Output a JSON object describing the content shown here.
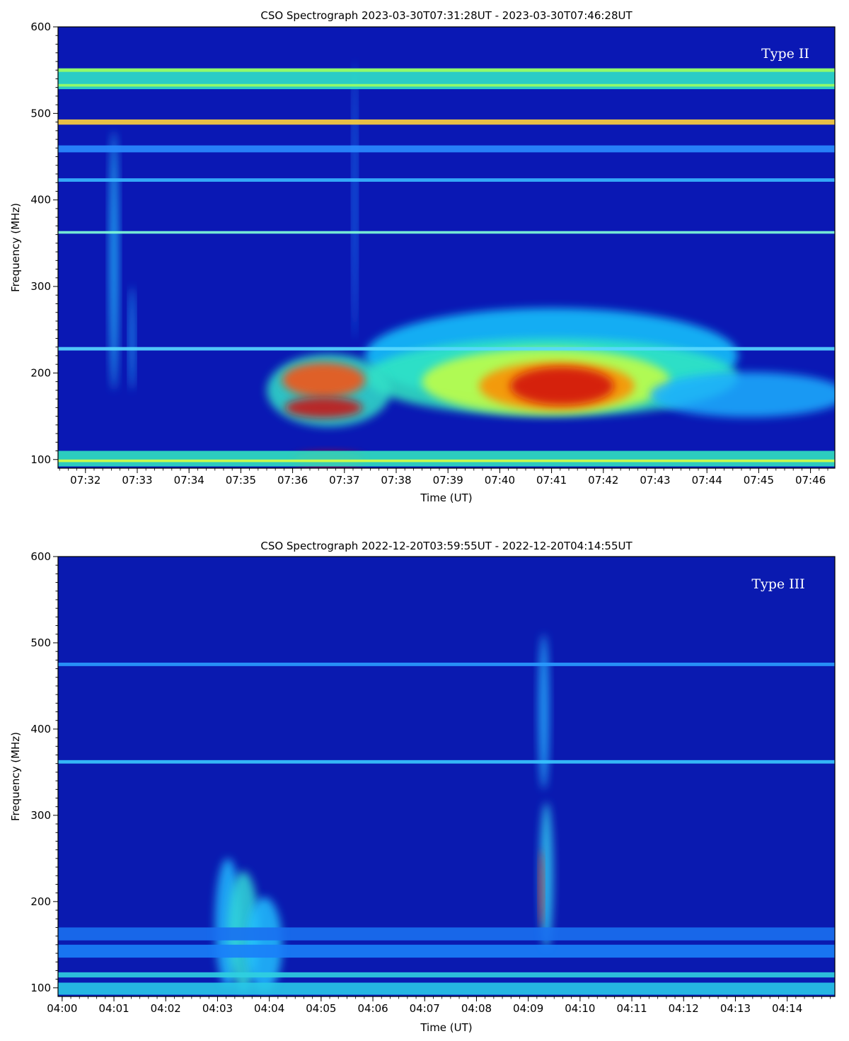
{
  "chart_data": [
    {
      "type": "heatmap",
      "title": "CSO Spectrograph 2023-03-30T07:31:28UT - 2023-03-30T07:46:28UT",
      "xlabel": "Time (UT)",
      "ylabel": "Frequency (MHz)",
      "annotation": "Type II",
      "x_range_min": [
        31.47,
        46.47
      ],
      "x_ticks": [
        {
          "min": 32,
          "label": "07:32"
        },
        {
          "min": 33,
          "label": "07:33"
        },
        {
          "min": 34,
          "label": "07:34"
        },
        {
          "min": 35,
          "label": "07:35"
        },
        {
          "min": 36,
          "label": "07:36"
        },
        {
          "min": 37,
          "label": "07:37"
        },
        {
          "min": 38,
          "label": "07:38"
        },
        {
          "min": 39,
          "label": "07:39"
        },
        {
          "min": 40,
          "label": "07:40"
        },
        {
          "min": 41,
          "label": "07:41"
        },
        {
          "min": 42,
          "label": "07:42"
        },
        {
          "min": 43,
          "label": "07:43"
        },
        {
          "min": 44,
          "label": "07:44"
        },
        {
          "min": 45,
          "label": "07:45"
        },
        {
          "min": 46,
          "label": "07:46"
        }
      ],
      "y_range": [
        90,
        600
      ],
      "y_ticks": [
        {
          "v": 100,
          "label": "100"
        },
        {
          "v": 200,
          "label": "200"
        },
        {
          "v": 300,
          "label": "300"
        },
        {
          "v": 400,
          "label": "400"
        },
        {
          "v": 500,
          "label": "500"
        },
        {
          "v": 600,
          "label": "600"
        }
      ],
      "colormap": "jet",
      "background": "#0a18b4",
      "bands": [
        {
          "f0": 528,
          "f1": 552,
          "color": "#2de0c8"
        },
        {
          "f0": 548,
          "f1": 552,
          "color": "#9bff60"
        },
        {
          "f0": 531,
          "f1": 534,
          "color": "#9bff60"
        },
        {
          "f0": 487,
          "f1": 493,
          "color": "#ffd23a"
        },
        {
          "f0": 455,
          "f1": 463,
          "color": "#2a8cff"
        },
        {
          "f0": 421,
          "f1": 425,
          "color": "#38b8ff"
        },
        {
          "f0": 361,
          "f1": 364,
          "color": "#7fffd8"
        },
        {
          "f0": 226,
          "f1": 230,
          "color": "#58d8ff"
        },
        {
          "f0": 92,
          "f1": 110,
          "color": "#30e0c0"
        },
        {
          "f0": 97,
          "f1": 100,
          "color": "#d8ff40"
        }
      ],
      "blobs": [
        {
          "t": 32.55,
          "f": 330,
          "rt": 0.08,
          "rf": 150,
          "color": "#28c0ff"
        },
        {
          "t": 32.9,
          "f": 240,
          "rt": 0.05,
          "rf": 60,
          "color": "#20b0ff"
        },
        {
          "t": 37.2,
          "f": 400,
          "rt": 0.04,
          "rf": 160,
          "color": "#1a90ff"
        },
        {
          "t": 41.0,
          "f": 220,
          "rt": 3.6,
          "rf": 55,
          "color": "#18c8ff"
        },
        {
          "t": 41.0,
          "f": 195,
          "rt": 3.6,
          "rf": 45,
          "color": "#30e8c0"
        },
        {
          "t": 40.9,
          "f": 190,
          "rt": 2.4,
          "rf": 38,
          "color": "#c8ff40"
        },
        {
          "t": 41.1,
          "f": 185,
          "rt": 1.5,
          "rf": 28,
          "color": "#ff8a00"
        },
        {
          "t": 41.2,
          "f": 185,
          "rt": 1.0,
          "rf": 22,
          "color": "#d01010"
        },
        {
          "t": 44.8,
          "f": 175,
          "rt": 1.9,
          "rf": 26,
          "color": "#1ab0ff"
        },
        {
          "t": 36.7,
          "f": 180,
          "rt": 1.2,
          "rf": 42,
          "color": "#30e0c8"
        },
        {
          "t": 36.6,
          "f": 192,
          "rt": 0.8,
          "rf": 20,
          "color": "#ff5010"
        },
        {
          "t": 36.6,
          "f": 160,
          "rt": 0.75,
          "rf": 12,
          "color": "#d01010"
        },
        {
          "t": 36.7,
          "f": 100,
          "rt": 0.7,
          "rf": 8,
          "color": "#d01010"
        }
      ]
    },
    {
      "type": "heatmap",
      "title": "CSO Spectrograph 2022-12-20T03:59:55UT - 2022-12-20T04:14:55UT",
      "xlabel": "Time (UT)",
      "ylabel": "Frequency (MHz)",
      "annotation": "Type III",
      "x_range_min": [
        -0.08,
        14.92
      ],
      "x_ticks": [
        {
          "min": 0,
          "label": "04:00"
        },
        {
          "min": 1,
          "label": "04:01"
        },
        {
          "min": 2,
          "label": "04:02"
        },
        {
          "min": 3,
          "label": "04:03"
        },
        {
          "min": 4,
          "label": "04:04"
        },
        {
          "min": 5,
          "label": "04:05"
        },
        {
          "min": 6,
          "label": "04:06"
        },
        {
          "min": 7,
          "label": "04:07"
        },
        {
          "min": 8,
          "label": "04:08"
        },
        {
          "min": 9,
          "label": "04:09"
        },
        {
          "min": 10,
          "label": "04:10"
        },
        {
          "min": 11,
          "label": "04:11"
        },
        {
          "min": 12,
          "label": "04:12"
        },
        {
          "min": 13,
          "label": "04:13"
        },
        {
          "min": 14,
          "label": "04:14"
        }
      ],
      "y_range": [
        90,
        600
      ],
      "y_ticks": [
        {
          "v": 100,
          "label": "100"
        },
        {
          "v": 200,
          "label": "200"
        },
        {
          "v": 300,
          "label": "300"
        },
        {
          "v": 400,
          "label": "400"
        },
        {
          "v": 500,
          "label": "500"
        },
        {
          "v": 600,
          "label": "600"
        }
      ],
      "colormap": "jet",
      "background": "#0a1ab0",
      "bands": [
        {
          "f0": 473,
          "f1": 477,
          "color": "#2a9cff"
        },
        {
          "f0": 360,
          "f1": 364,
          "color": "#38c8ff"
        },
        {
          "f0": 155,
          "f1": 170,
          "color": "#1a70f0"
        },
        {
          "f0": 135,
          "f1": 150,
          "color": "#1a80f8"
        },
        {
          "f0": 112,
          "f1": 118,
          "color": "#30d0e0"
        },
        {
          "f0": 92,
          "f1": 106,
          "color": "#28c8e8"
        }
      ],
      "blobs": [
        {
          "t": 3.2,
          "f": 175,
          "rt": 0.25,
          "rf": 75,
          "color": "#20b8ff"
        },
        {
          "t": 3.5,
          "f": 165,
          "rt": 0.3,
          "rf": 70,
          "color": "#30d8d8"
        },
        {
          "t": 3.9,
          "f": 150,
          "rt": 0.35,
          "rf": 55,
          "color": "#20c0ff"
        },
        {
          "t": 9.3,
          "f": 420,
          "rt": 0.1,
          "rf": 90,
          "color": "#28b0ff"
        },
        {
          "t": 9.35,
          "f": 230,
          "rt": 0.13,
          "rf": 85,
          "color": "#30c8f0"
        },
        {
          "t": 9.25,
          "f": 215,
          "rt": 0.04,
          "rf": 45,
          "color": "#ff3010"
        }
      ]
    }
  ]
}
